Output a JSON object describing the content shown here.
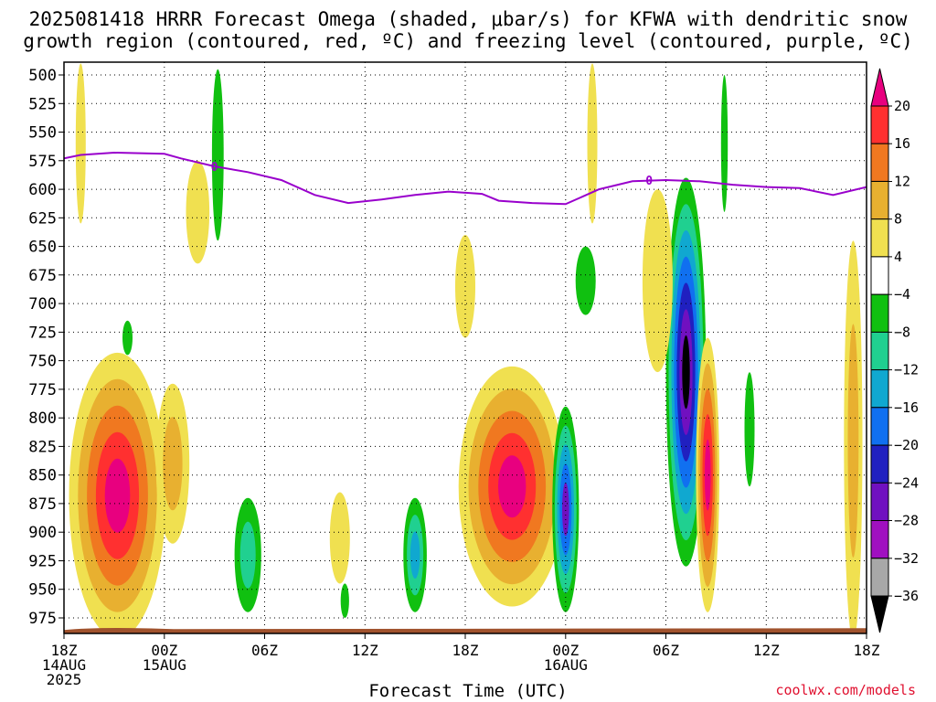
{
  "title_line1": "2025081418 HRRR Forecast Omega (shaded, μbar/s) for KFWA with dendritic snow",
  "title_line2": "growth region (contoured, red, ºC) and freezing level (contoured, purple, ºC)",
  "credit": "coolwx.com/models",
  "chart_data": {
    "type": "time-height contour",
    "xlabel": "Forecast Time (UTC)",
    "ylabel": "",
    "x_ticks": [
      {
        "hour": 0,
        "lines": [
          "18Z",
          "14AUG",
          "2025"
        ]
      },
      {
        "hour": 6,
        "lines": [
          "00Z",
          "15AUG"
        ]
      },
      {
        "hour": 12,
        "lines": [
          "06Z"
        ]
      },
      {
        "hour": 18,
        "lines": [
          "12Z"
        ]
      },
      {
        "hour": 24,
        "lines": [
          "18Z"
        ]
      },
      {
        "hour": 30,
        "lines": [
          "00Z",
          "16AUG"
        ]
      },
      {
        "hour": 36,
        "lines": [
          "06Z"
        ]
      },
      {
        "hour": 42,
        "lines": [
          "12Z"
        ]
      },
      {
        "hour": 48,
        "lines": [
          "18Z"
        ]
      }
    ],
    "xlim": [
      0,
      48
    ],
    "y_ticks": [
      500,
      525,
      550,
      575,
      600,
      625,
      650,
      675,
      700,
      725,
      750,
      775,
      800,
      825,
      850,
      875,
      900,
      925,
      950,
      975
    ],
    "ylim": [
      500,
      985
    ],
    "grid": true,
    "colorbar": {
      "labels": [
        "20",
        "16",
        "12",
        "8",
        "4",
        "−4",
        "−8",
        "−12",
        "−16",
        "−20",
        "−24",
        "−28",
        "−32",
        "−36"
      ],
      "colors": [
        "#e8007f",
        "#ff3030",
        "#f07820",
        "#e8b030",
        "#f0e050",
        "#ffffff",
        "#10c010",
        "#20d090",
        "#10a8d0",
        "#1070f0",
        "#2020c0",
        "#7010c0",
        "#a010c0",
        "#a8a8a8",
        "#000000"
      ]
    },
    "freezing_level": {
      "color": "#9900cc",
      "contour_label": "0",
      "hours": [
        0,
        1,
        3,
        6,
        7,
        9,
        11,
        13,
        15,
        17,
        19,
        21,
        23,
        25,
        26,
        28,
        30,
        32,
        34,
        36,
        38,
        40,
        42,
        44,
        46,
        48
      ],
      "pressures": [
        573,
        570,
        568,
        569,
        573,
        580,
        585,
        592,
        605,
        612,
        609,
        605,
        602,
        604,
        610,
        612,
        613,
        600,
        593,
        592,
        593,
        596,
        598,
        599,
        605,
        598
      ]
    },
    "omega_blobs": [
      {
        "hour": 3.2,
        "p": 868,
        "hw": 2.9,
        "hh": 125,
        "levels": [
          "#f0e050",
          "#e8b030",
          "#f07820",
          "#ff3030",
          "#e8007f"
        ]
      },
      {
        "hour": 26.8,
        "p": 860,
        "hw": 3.2,
        "hh": 105,
        "levels": [
          "#f0e050",
          "#e8b030",
          "#f07820",
          "#ff3030",
          "#e8007f"
        ]
      },
      {
        "hour": 37.2,
        "p": 760,
        "hw": 1.2,
        "hh": 170,
        "levels": [
          "#10c010",
          "#20d090",
          "#10a8d0",
          "#1070f0",
          "#2020c0",
          "#7010c0",
          "#000000"
        ]
      },
      {
        "hour": 38.5,
        "p": 850,
        "hw": 0.7,
        "hh": 120,
        "levels": [
          "#f0e050",
          "#e8b030",
          "#f07820",
          "#ff3030",
          "#e8007f"
        ]
      },
      {
        "hour": 30.0,
        "p": 880,
        "hw": 0.8,
        "hh": 90,
        "levels": [
          "#10c010",
          "#20d090",
          "#10a8d0",
          "#1070f0",
          "#7010c0"
        ]
      },
      {
        "hour": 21.0,
        "p": 920,
        "hw": 0.7,
        "hh": 50,
        "levels": [
          "#10c010",
          "#20d090",
          "#10a8d0"
        ]
      },
      {
        "hour": 11.0,
        "p": 920,
        "hw": 0.8,
        "hh": 50,
        "levels": [
          "#10c010",
          "#20d090"
        ]
      },
      {
        "hour": 1.0,
        "p": 560,
        "hw": 0.3,
        "hh": 70,
        "levels": [
          "#f0e050"
        ]
      },
      {
        "hour": 9.2,
        "p": 570,
        "hw": 0.35,
        "hh": 75,
        "levels": [
          "#10c010"
        ]
      },
      {
        "hour": 8.0,
        "p": 620,
        "hw": 0.7,
        "hh": 45,
        "levels": [
          "#f0e050"
        ]
      },
      {
        "hour": 24.0,
        "p": 685,
        "hw": 0.6,
        "hh": 45,
        "levels": [
          "#f0e050"
        ]
      },
      {
        "hour": 31.6,
        "p": 560,
        "hw": 0.3,
        "hh": 70,
        "levels": [
          "#f0e050"
        ]
      },
      {
        "hour": 31.2,
        "p": 680,
        "hw": 0.6,
        "hh": 30,
        "levels": [
          "#10c010"
        ]
      },
      {
        "hour": 35.5,
        "p": 680,
        "hw": 0.9,
        "hh": 80,
        "levels": [
          "#f0e050"
        ]
      },
      {
        "hour": 39.5,
        "p": 560,
        "hw": 0.2,
        "hh": 60,
        "levels": [
          "#10c010"
        ]
      },
      {
        "hour": 47.2,
        "p": 820,
        "hw": 0.55,
        "hh": 175,
        "levels": [
          "#f0e050",
          "#e8b030"
        ]
      },
      {
        "hour": 41.0,
        "p": 810,
        "hw": 0.3,
        "hh": 50,
        "levels": [
          "#10c010"
        ]
      },
      {
        "hour": 6.5,
        "p": 840,
        "hw": 1.0,
        "hh": 70,
        "levels": [
          "#f0e050",
          "#e8b030"
        ]
      },
      {
        "hour": 3.8,
        "p": 730,
        "hw": 0.3,
        "hh": 15,
        "levels": [
          "#10c010"
        ]
      },
      {
        "hour": 16.5,
        "p": 905,
        "hw": 0.6,
        "hh": 40,
        "levels": [
          "#f0e050"
        ]
      },
      {
        "hour": 16.8,
        "p": 960,
        "hw": 0.25,
        "hh": 15,
        "levels": [
          "#10c010"
        ]
      }
    ],
    "terrain_pressure": 980,
    "terrain_color": "#a0522d"
  }
}
